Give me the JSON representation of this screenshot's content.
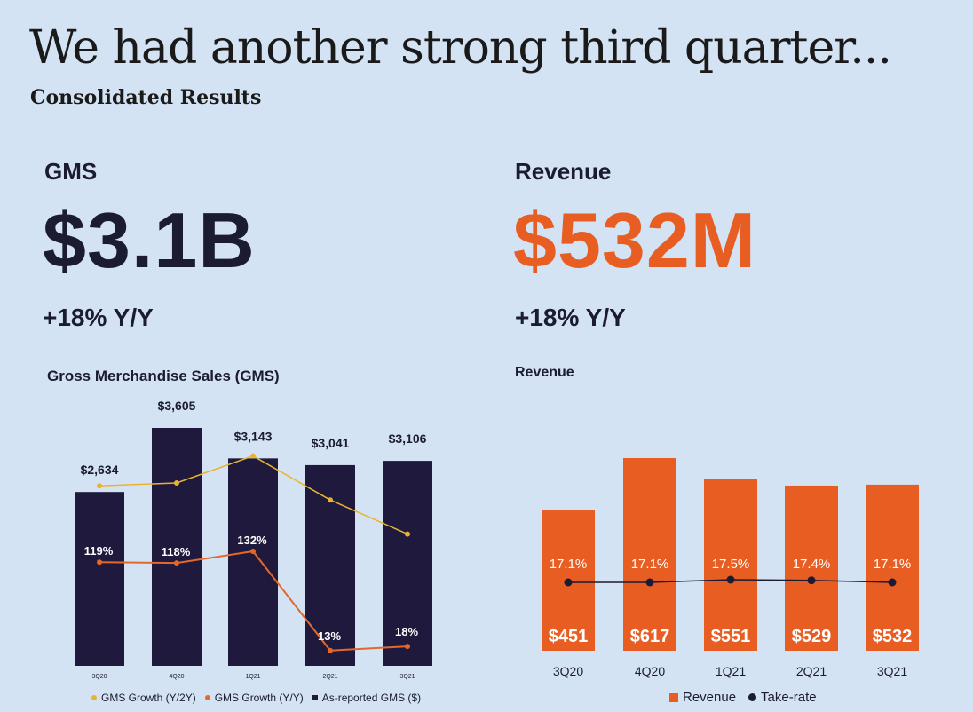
{
  "header": {
    "title": "We had another strong third quarter...",
    "subtitle": "Consolidated Results"
  },
  "kpis": {
    "gms": {
      "label": "GMS",
      "value": "$3.1B",
      "change": "+18% Y/Y"
    },
    "revenue": {
      "label": "Revenue",
      "value": "$532M",
      "change": "+18% Y/Y"
    }
  },
  "colors": {
    "navy": "#1f1a3d",
    "orange": "#e85d22",
    "gold": "#e8b430",
    "line_orange": "#e2682c",
    "dark_point": "#1b1b33"
  },
  "chart_data": [
    {
      "type": "bar",
      "title": "Gross Merchandise Sales (GMS)",
      "categories": [
        "3Q20",
        "4Q20",
        "1Q21",
        "2Q21",
        "3Q21"
      ],
      "series": [
        {
          "name": "As-reported GMS ($)",
          "values": [
            2634,
            3605,
            3143,
            3041,
            3106
          ],
          "labels": [
            "$2,634",
            "$3,605",
            "$3,143",
            "$3,041",
            "$3,106"
          ]
        },
        {
          "name": "GMS Growth (Y/2Y)",
          "values": [
            null,
            null,
            null,
            null,
            null
          ],
          "relative_levels": [
            0.58,
            0.6,
            0.79,
            0.48,
            0.24
          ]
        },
        {
          "name": "GMS Growth (Y/Y)",
          "values": [
            119,
            118,
            132,
            13,
            18
          ],
          "labels": [
            "119%",
            "118%",
            "132%",
            "13%",
            "18%"
          ]
        }
      ],
      "ylim": [
        0,
        3800
      ]
    },
    {
      "type": "bar",
      "title": "Revenue",
      "categories": [
        "3Q20",
        "4Q20",
        "1Q21",
        "2Q21",
        "3Q21"
      ],
      "series": [
        {
          "name": "Revenue",
          "values": [
            451,
            617,
            551,
            529,
            532
          ],
          "labels": [
            "$451",
            "$617",
            "$551",
            "$529",
            "$532"
          ]
        },
        {
          "name": "Take-rate",
          "values": [
            17.1,
            17.1,
            17.5,
            17.4,
            17.1
          ],
          "labels": [
            "17.1%",
            "17.1%",
            "17.5%",
            "17.4%",
            "17.1%"
          ]
        }
      ],
      "ylim": [
        0,
        680
      ]
    }
  ]
}
